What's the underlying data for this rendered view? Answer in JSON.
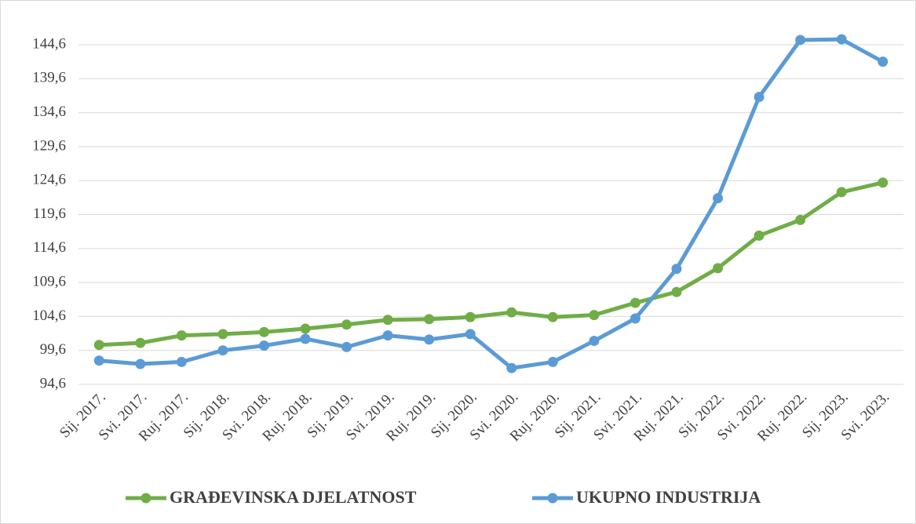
{
  "chart_data": {
    "type": "line",
    "categories": [
      "Sij. 2017.",
      "Svi. 2017.",
      "Ruj. 2017.",
      "Sij. 2018.",
      "Svi. 2018.",
      "Ruj. 2018.",
      "Sij. 2019.",
      "Svi. 2019.",
      "Ruj. 2019.",
      "Sij. 2020.",
      "Svi. 2020.",
      "Ruj. 2020.",
      "Sij. 2021.",
      "Svi. 2021.",
      "Ruj. 2021.",
      "Sij. 2022.",
      "Svi. 2022.",
      "Ruj. 2022.",
      "Sij. 2023.",
      "Svi. 2023."
    ],
    "series": [
      {
        "name": "GRAĐEVINSKA DJELATNOST",
        "color": "#70ad47",
        "values": [
          100.4,
          100.7,
          101.8,
          102.0,
          102.3,
          102.8,
          103.4,
          104.1,
          104.2,
          104.5,
          105.2,
          104.5,
          104.8,
          106.6,
          108.2,
          111.7,
          116.5,
          118.8,
          122.9,
          124.3
        ]
      },
      {
        "name": "UKUPNO INDUSTRIJA",
        "color": "#5b9bd5",
        "values": [
          98.1,
          97.6,
          97.9,
          99.6,
          100.3,
          101.3,
          100.1,
          101.8,
          101.2,
          102.0,
          97.0,
          97.9,
          101.0,
          104.3,
          111.6,
          122.0,
          136.9,
          145.3,
          145.4,
          142.1
        ]
      }
    ],
    "ylim": [
      94.6,
      149.6
    ],
    "yticks": [
      {
        "value": 94.6,
        "label": "94,6"
      },
      {
        "value": 99.6,
        "label": "99,6"
      },
      {
        "value": 104.6,
        "label": "104,6"
      },
      {
        "value": 109.6,
        "label": "109,6"
      },
      {
        "value": 114.6,
        "label": "114,6"
      },
      {
        "value": 119.6,
        "label": "119,6"
      },
      {
        "value": 124.6,
        "label": "124,6"
      },
      {
        "value": 129.6,
        "label": "129,6"
      },
      {
        "value": 134.6,
        "label": "134,6"
      },
      {
        "value": 139.6,
        "label": "139,6"
      },
      {
        "value": 144.6,
        "label": "144,6"
      }
    ],
    "grid": true,
    "legend": "bottom"
  }
}
